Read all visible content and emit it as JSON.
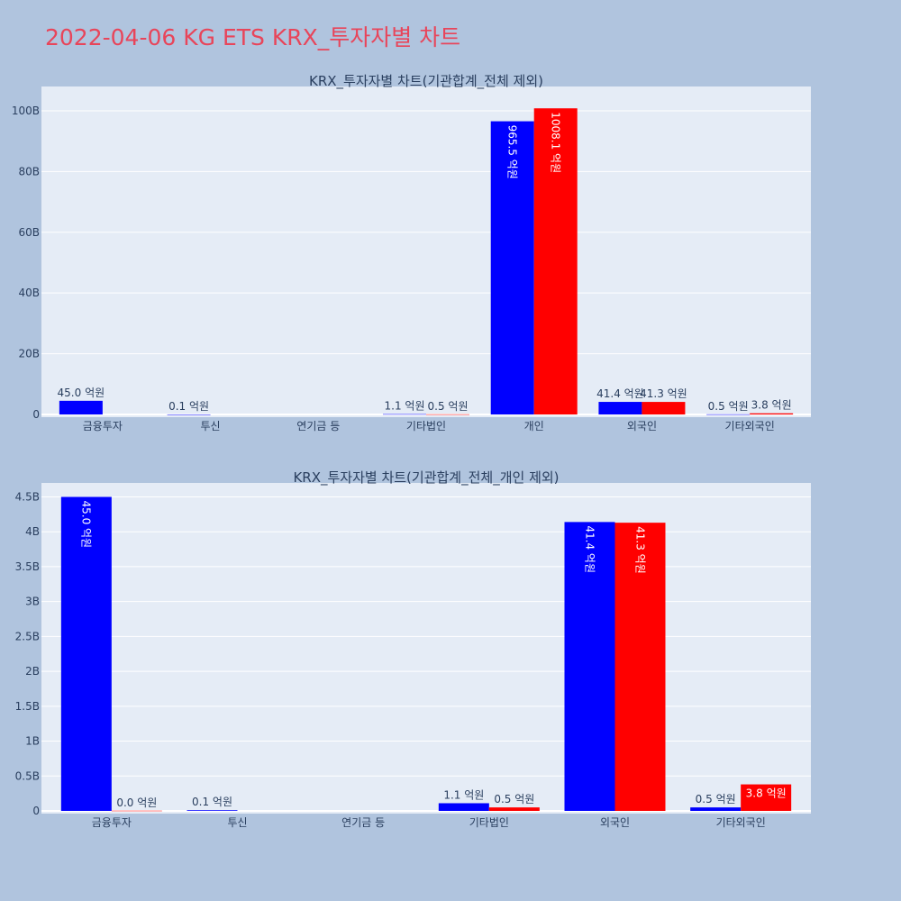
{
  "page": {
    "title": "2022-04-06 KG ETS KRX_투자자별 차트"
  },
  "chart_data": [
    {
      "type": "bar",
      "title": "KRX_투자자별 차트(기관합계_전체 제외)",
      "categories": [
        "금융투자",
        "투신",
        "연기금 등",
        "기타법인",
        "개인",
        "외국인",
        "기타외국인"
      ],
      "ylim": [
        0,
        108
      ],
      "yticks": [
        0,
        20,
        40,
        60,
        80,
        100
      ],
      "ytick_labels": [
        "0",
        "20B",
        "40B",
        "60B",
        "80B",
        "100B"
      ],
      "series": [
        {
          "color": "#0000ff",
          "values": [
            4.5,
            0.01,
            null,
            0.11,
            96.55,
            4.14,
            0.05
          ],
          "labels": [
            "45.0 억원",
            "0.1 억원",
            "",
            "1.1 억원",
            "965.5 억원",
            "41.4 억원",
            "0.5 억원"
          ],
          "label_pos": [
            "outside",
            "outside",
            "",
            "outside",
            "inside",
            "outside",
            "outside"
          ]
        },
        {
          "color": "#ff0000",
          "values": [
            null,
            null,
            null,
            0.05,
            100.81,
            4.13,
            0.38
          ],
          "labels": [
            "",
            "",
            "",
            "0.5 억원",
            "1008.1 억원",
            "41.3 억원",
            "3.8 억원"
          ],
          "label_pos": [
            "",
            "",
            "",
            "outside",
            "inside",
            "outside",
            "outside"
          ]
        }
      ],
      "grid": true,
      "legend": "none"
    },
    {
      "type": "bar",
      "title": "KRX_투자자별 차트(기관합계_전체_개인 제외)",
      "categories": [
        "금융투자",
        "투신",
        "연기금 등",
        "기타법인",
        "외국인",
        "기타외국인"
      ],
      "ylim": [
        0,
        4.7
      ],
      "yticks": [
        0,
        0.5,
        1,
        1.5,
        2,
        2.5,
        3,
        3.5,
        4,
        4.5
      ],
      "ytick_labels": [
        "0",
        "0.5B",
        "1B",
        "1.5B",
        "2B",
        "2.5B",
        "3B",
        "3.5B",
        "4B",
        "4.5B"
      ],
      "series": [
        {
          "color": "#0000ff",
          "values": [
            4.5,
            0.01,
            null,
            0.11,
            4.14,
            0.05
          ],
          "labels": [
            "45.0 억원",
            "0.1 억원",
            "",
            "1.1 억원",
            "41.4 억원",
            "0.5 억원"
          ],
          "label_pos": [
            "inside",
            "outside",
            "",
            "outside",
            "inside",
            "outside"
          ]
        },
        {
          "color": "#ff0000",
          "values": [
            0.003,
            null,
            null,
            0.05,
            4.13,
            0.38
          ],
          "labels": [
            "0.0 억원",
            "",
            "",
            "0.5 억원",
            "41.3 억원",
            "3.8 억원"
          ],
          "label_pos": [
            "outside",
            "",
            "",
            "outside",
            "inside",
            "inside"
          ]
        }
      ],
      "grid": true,
      "legend": "none"
    }
  ]
}
